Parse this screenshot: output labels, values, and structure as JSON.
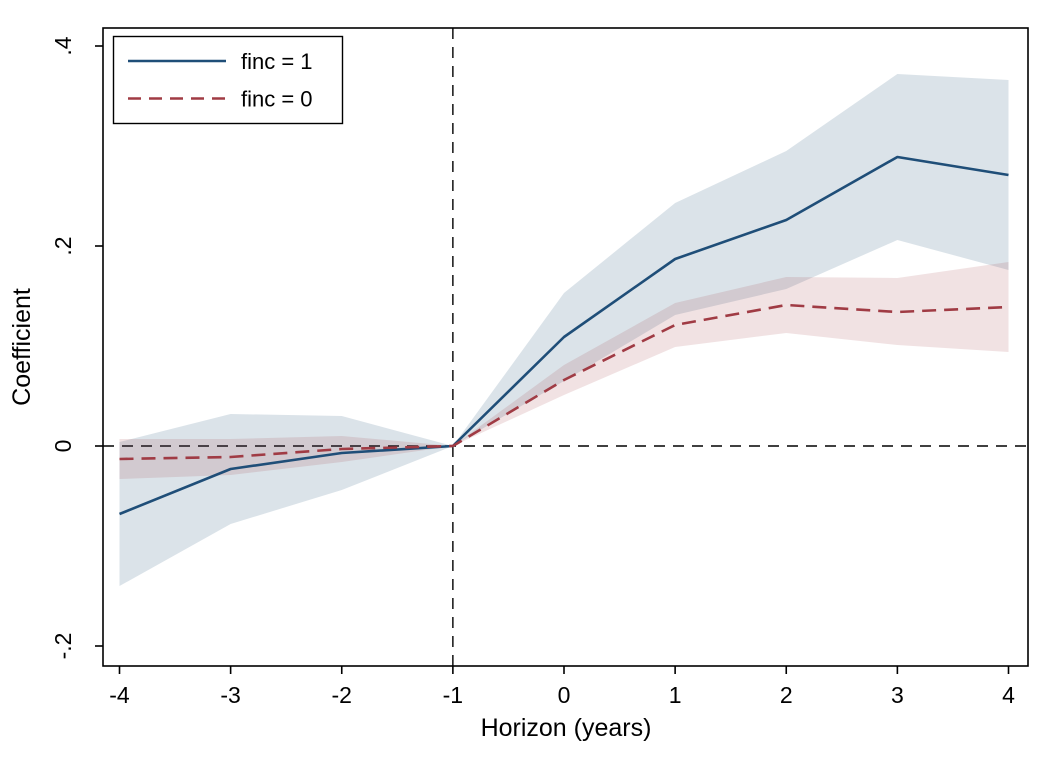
{
  "chart_data": {
    "type": "line",
    "title": "",
    "xlabel": "Horizon (years)",
    "ylabel": "Coefficient",
    "x": [
      -4,
      -3,
      -2,
      -1,
      0,
      1,
      2,
      3,
      4
    ],
    "x_tick_labels": [
      "-4",
      "-3",
      "-2",
      "-1",
      "0",
      "1",
      "2",
      "3",
      "4"
    ],
    "y_ticks": [
      {
        "value": 0.4,
        "label": ".4"
      },
      {
        "value": 0.2,
        "label": ".2"
      },
      {
        "value": 0.0,
        "label": "0"
      },
      {
        "value": -0.2,
        "label": "-.2"
      }
    ],
    "xlim": [
      -4.15,
      4.18
    ],
    "ylim": [
      -0.22,
      0.418
    ],
    "grid": false,
    "legend_position": "top-left",
    "reference_lines": {
      "vline_x": -1,
      "hline_y": 0,
      "style": "dashed",
      "color": "#000000"
    },
    "series": [
      {
        "name": "finc = 1",
        "style": "solid",
        "color": "#1f4e78",
        "band_color": "#1f4e78",
        "band_opacity": 0.16,
        "values": [
          -0.068,
          -0.023,
          -0.007,
          0,
          0.109,
          0.187,
          0.226,
          0.289,
          0.271
        ],
        "ci_lower": [
          -0.14,
          -0.078,
          -0.044,
          0,
          0.065,
          0.131,
          0.157,
          0.206,
          0.176
        ],
        "ci_upper": [
          0.004,
          0.032,
          0.03,
          0,
          0.153,
          0.243,
          0.295,
          0.372,
          0.366
        ]
      },
      {
        "name": "finc = 0",
        "style": "dashed",
        "color": "#a03b44",
        "band_color": "#a03b44",
        "band_opacity": 0.15,
        "values": [
          -0.013,
          -0.011,
          -0.003,
          0,
          0.066,
          0.121,
          0.141,
          0.134,
          0.139
        ],
        "ci_lower": [
          -0.033,
          -0.029,
          -0.016,
          0,
          0.051,
          0.099,
          0.113,
          0.101,
          0.094
        ],
        "ci_upper": [
          0.007,
          0.007,
          0.01,
          0,
          0.081,
          0.143,
          0.169,
          0.168,
          0.184
        ]
      }
    ]
  }
}
